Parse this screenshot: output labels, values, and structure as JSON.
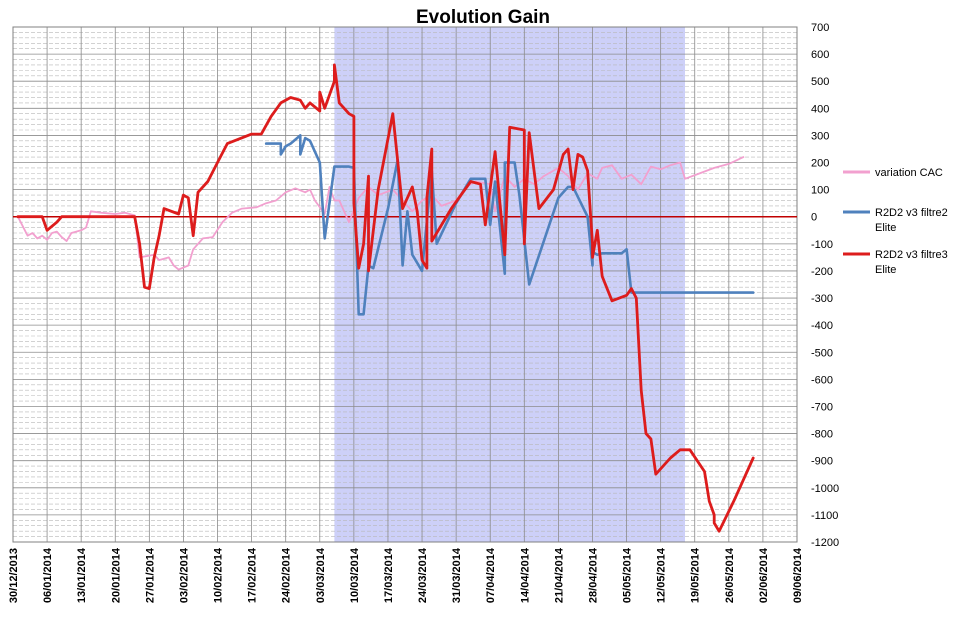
{
  "chart_data": {
    "type": "line",
    "title": "Evolution Gain",
    "xlabel": "",
    "ylabel": "",
    "x_range": [
      "30/12/2013",
      "09/06/2014"
    ],
    "ylim": [
      -1200,
      700
    ],
    "y_ticks": [
      700,
      600,
      500,
      400,
      300,
      200,
      100,
      0,
      -100,
      -200,
      -300,
      -400,
      -500,
      -600,
      -700,
      -800,
      -900,
      -1000,
      -1100,
      -1200
    ],
    "x_ticks": [
      "30/12/2013",
      "06/01/2014",
      "13/01/2014",
      "20/01/2014",
      "27/01/2014",
      "03/02/2014",
      "10/02/2014",
      "17/02/2014",
      "24/02/2014",
      "03/03/2014",
      "10/03/2014",
      "17/03/2014",
      "24/03/2014",
      "31/03/2014",
      "07/04/2014",
      "14/04/2014",
      "21/04/2014",
      "28/04/2014",
      "05/05/2014",
      "12/05/2014",
      "19/05/2014",
      "26/05/2014",
      "02/06/2014",
      "09/06/2014"
    ],
    "grid": true,
    "legend_position": "right",
    "highlight_band": {
      "from": "06/03/2014",
      "to": "17/05/2014",
      "color": "#cdd0f8"
    },
    "zero_line_color": "#c00000",
    "series": [
      {
        "name": "variation CAC",
        "color": "#f2a0cf",
        "points": [
          [
            "31/12/2013",
            0
          ],
          [
            "02/01/2014",
            -70
          ],
          [
            "03/01/2014",
            -60
          ],
          [
            "04/01/2014",
            -80
          ],
          [
            "05/01/2014",
            -70
          ],
          [
            "06/01/2014",
            -85
          ],
          [
            "07/01/2014",
            -60
          ],
          [
            "08/01/2014",
            -55
          ],
          [
            "09/01/2014",
            -75
          ],
          [
            "10/01/2014",
            -90
          ],
          [
            "11/01/2014",
            -60
          ],
          [
            "13/01/2014",
            -50
          ],
          [
            "14/01/2014",
            -40
          ],
          [
            "15/01/2014",
            20
          ],
          [
            "17/01/2014",
            15
          ],
          [
            "20/01/2014",
            10
          ],
          [
            "22/01/2014",
            15
          ],
          [
            "24/01/2014",
            5
          ],
          [
            "25/01/2014",
            -150
          ],
          [
            "28/01/2014",
            -140
          ],
          [
            "29/01/2014",
            -160
          ],
          [
            "31/01/2014",
            -150
          ],
          [
            "01/02/2014",
            -180
          ],
          [
            "02/02/2014",
            -195
          ],
          [
            "04/02/2014",
            -180
          ],
          [
            "05/02/2014",
            -120
          ],
          [
            "07/02/2014",
            -80
          ],
          [
            "09/02/2014",
            -75
          ],
          [
            "11/02/2014",
            -20
          ],
          [
            "13/02/2014",
            15
          ],
          [
            "15/02/2014",
            30
          ],
          [
            "18/02/2014",
            35
          ],
          [
            "20/02/2014",
            50
          ],
          [
            "22/02/2014",
            60
          ],
          [
            "24/02/2014",
            90
          ],
          [
            "26/02/2014",
            105
          ],
          [
            "28/02/2014",
            90
          ],
          [
            "01/03/2014",
            100
          ],
          [
            "02/03/2014",
            60
          ],
          [
            "04/03/2014",
            10
          ],
          [
            "05/03/2014",
            110
          ],
          [
            "06/03/2014",
            60
          ],
          [
            "07/03/2014",
            60
          ],
          [
            "09/03/2014",
            -20
          ],
          [
            "11/03/2014",
            70
          ],
          [
            "13/03/2014",
            110
          ],
          [
            "15/03/2014",
            80
          ],
          [
            "18/03/2014",
            100
          ],
          [
            "20/03/2014",
            60
          ],
          [
            "22/03/2014",
            20
          ],
          [
            "24/03/2014",
            60
          ],
          [
            "26/03/2014",
            80
          ],
          [
            "28/03/2014",
            40
          ],
          [
            "31/03/2014",
            60
          ],
          [
            "02/04/2014",
            110
          ],
          [
            "04/04/2014",
            130
          ],
          [
            "07/04/2014",
            120
          ],
          [
            "08/04/2014",
            20
          ],
          [
            "10/04/2014",
            150
          ],
          [
            "12/04/2014",
            110
          ],
          [
            "14/04/2014",
            140
          ],
          [
            "16/04/2014",
            120
          ],
          [
            "18/04/2014",
            150
          ],
          [
            "21/04/2014",
            180
          ],
          [
            "23/04/2014",
            150
          ],
          [
            "25/04/2014",
            100
          ],
          [
            "27/04/2014",
            160
          ],
          [
            "29/04/2014",
            140
          ],
          [
            "30/04/2014",
            180
          ],
          [
            "02/05/2014",
            190
          ],
          [
            "04/05/2014",
            140
          ],
          [
            "06/05/2014",
            155
          ],
          [
            "08/05/2014",
            120
          ],
          [
            "10/05/2014",
            185
          ],
          [
            "12/05/2014",
            175
          ],
          [
            "14/05/2014",
            190
          ],
          [
            "16/05/2014",
            200
          ],
          [
            "17/05/2014",
            140
          ],
          [
            "20/05/2014",
            160
          ],
          [
            "23/05/2014",
            180
          ],
          [
            "26/05/2014",
            195
          ],
          [
            "29/05/2014",
            220
          ]
        ]
      },
      {
        "name": "R2D2 v3 filtre2 Elite",
        "color": "#4f81bd",
        "points": [
          [
            "20/02/2014",
            270
          ],
          [
            "23/02/2014",
            270
          ],
          [
            "23/02/2014",
            230
          ],
          [
            "24/02/2014",
            260
          ],
          [
            "25/02/2014",
            270
          ],
          [
            "27/02/2014",
            300
          ],
          [
            "27/02/2014",
            230
          ],
          [
            "28/02/2014",
            290
          ],
          [
            "01/03/2014",
            280
          ],
          [
            "03/03/2014",
            200
          ],
          [
            "04/03/2014",
            -80
          ],
          [
            "06/03/2014",
            185
          ],
          [
            "09/03/2014",
            185
          ],
          [
            "10/03/2014",
            180
          ],
          [
            "11/03/2014",
            -360
          ],
          [
            "12/03/2014",
            -360
          ],
          [
            "13/03/2014",
            -180
          ],
          [
            "14/03/2014",
            -190
          ],
          [
            "17/03/2014",
            30
          ],
          [
            "19/03/2014",
            210
          ],
          [
            "20/03/2014",
            -180
          ],
          [
            "21/03/2014",
            20
          ],
          [
            "22/03/2014",
            -140
          ],
          [
            "24/03/2014",
            -200
          ],
          [
            "26/03/2014",
            170
          ],
          [
            "27/03/2014",
            -100
          ],
          [
            "31/03/2014",
            50
          ],
          [
            "03/04/2014",
            140
          ],
          [
            "06/04/2014",
            140
          ],
          [
            "07/04/2014",
            -30
          ],
          [
            "08/04/2014",
            130
          ],
          [
            "10/04/2014",
            -210
          ],
          [
            "10/04/2014",
            200
          ],
          [
            "12/04/2014",
            200
          ],
          [
            "13/04/2014",
            80
          ],
          [
            "15/04/2014",
            -250
          ],
          [
            "21/04/2014",
            70
          ],
          [
            "23/04/2014",
            110
          ],
          [
            "24/04/2014",
            110
          ],
          [
            "27/04/2014",
            0
          ],
          [
            "28/04/2014",
            -180
          ],
          [
            "28/04/2014",
            -130
          ],
          [
            "29/04/2014",
            -140
          ],
          [
            "30/04/2014",
            -135
          ],
          [
            "04/05/2014",
            -135
          ],
          [
            "05/05/2014",
            -120
          ],
          [
            "06/05/2014",
            -280
          ],
          [
            "31/05/2014",
            -280
          ]
        ]
      },
      {
        "name": "R2D2 v3 filtre3 Elite",
        "color": "#dd1c1c",
        "points": [
          [
            "31/12/2013",
            0
          ],
          [
            "05/01/2014",
            0
          ],
          [
            "06/01/2014",
            -50
          ],
          [
            "08/01/2014",
            -20
          ],
          [
            "09/01/2014",
            0
          ],
          [
            "24/01/2014",
            0
          ],
          [
            "25/01/2014",
            -100
          ],
          [
            "26/01/2014",
            -260
          ],
          [
            "27/01/2014",
            -265
          ],
          [
            "28/01/2014",
            -150
          ],
          [
            "29/01/2014",
            -70
          ],
          [
            "30/01/2014",
            30
          ],
          [
            "02/02/2014",
            10
          ],
          [
            "03/02/2014",
            80
          ],
          [
            "04/02/2014",
            70
          ],
          [
            "05/02/2014",
            -70
          ],
          [
            "06/02/2014",
            90
          ],
          [
            "08/02/2014",
            130
          ],
          [
            "10/02/2014",
            200
          ],
          [
            "12/02/2014",
            270
          ],
          [
            "17/02/2014",
            305
          ],
          [
            "19/02/2014",
            305
          ],
          [
            "21/02/2014",
            370
          ],
          [
            "23/02/2014",
            420
          ],
          [
            "25/02/2014",
            440
          ],
          [
            "27/02/2014",
            430
          ],
          [
            "28/02/2014",
            400
          ],
          [
            "01/03/2014",
            420
          ],
          [
            "03/03/2014",
            390
          ],
          [
            "03/03/2014",
            460
          ],
          [
            "04/03/2014",
            400
          ],
          [
            "06/03/2014",
            500
          ],
          [
            "06/03/2014",
            560
          ],
          [
            "07/03/2014",
            420
          ],
          [
            "09/03/2014",
            380
          ],
          [
            "10/03/2014",
            370
          ],
          [
            "10/03/2014",
            50
          ],
          [
            "11/03/2014",
            -190
          ],
          [
            "12/03/2014",
            -100
          ],
          [
            "13/03/2014",
            150
          ],
          [
            "13/03/2014",
            -200
          ],
          [
            "15/03/2014",
            100
          ],
          [
            "18/03/2014",
            380
          ],
          [
            "20/03/2014",
            30
          ],
          [
            "22/03/2014",
            110
          ],
          [
            "23/03/2014",
            20
          ],
          [
            "24/03/2014",
            -160
          ],
          [
            "25/03/2014",
            -190
          ],
          [
            "25/03/2014",
            70
          ],
          [
            "26/03/2014",
            250
          ],
          [
            "26/03/2014",
            -90
          ],
          [
            "30/03/2014",
            30
          ],
          [
            "03/04/2014",
            130
          ],
          [
            "05/04/2014",
            120
          ],
          [
            "06/04/2014",
            -30
          ],
          [
            "08/04/2014",
            240
          ],
          [
            "10/04/2014",
            -140
          ],
          [
            "11/04/2014",
            330
          ],
          [
            "14/04/2014",
            320
          ],
          [
            "14/04/2014",
            -100
          ],
          [
            "15/04/2014",
            310
          ],
          [
            "17/04/2014",
            30
          ],
          [
            "20/04/2014",
            100
          ],
          [
            "22/04/2014",
            230
          ],
          [
            "23/04/2014",
            250
          ],
          [
            "24/04/2014",
            100
          ],
          [
            "25/04/2014",
            230
          ],
          [
            "26/04/2014",
            220
          ],
          [
            "27/04/2014",
            170
          ],
          [
            "28/04/2014",
            -100
          ],
          [
            "28/04/2014",
            -150
          ],
          [
            "29/04/2014",
            -50
          ],
          [
            "30/04/2014",
            -220
          ],
          [
            "02/05/2014",
            -310
          ],
          [
            "05/05/2014",
            -290
          ],
          [
            "06/05/2014",
            -265
          ],
          [
            "07/05/2014",
            -300
          ],
          [
            "08/05/2014",
            -640
          ],
          [
            "09/05/2014",
            -800
          ],
          [
            "10/05/2014",
            -820
          ],
          [
            "11/05/2014",
            -950
          ],
          [
            "14/05/2014",
            -890
          ],
          [
            "16/05/2014",
            -860
          ],
          [
            "18/05/2014",
            -860
          ],
          [
            "21/05/2014",
            -940
          ],
          [
            "22/05/2014",
            -1050
          ],
          [
            "23/05/2014",
            -1100
          ],
          [
            "23/05/2014",
            -1130
          ],
          [
            "24/05/2014",
            -1160
          ],
          [
            "27/05/2014",
            -1050
          ],
          [
            "31/05/2014",
            -890
          ]
        ]
      }
    ]
  }
}
